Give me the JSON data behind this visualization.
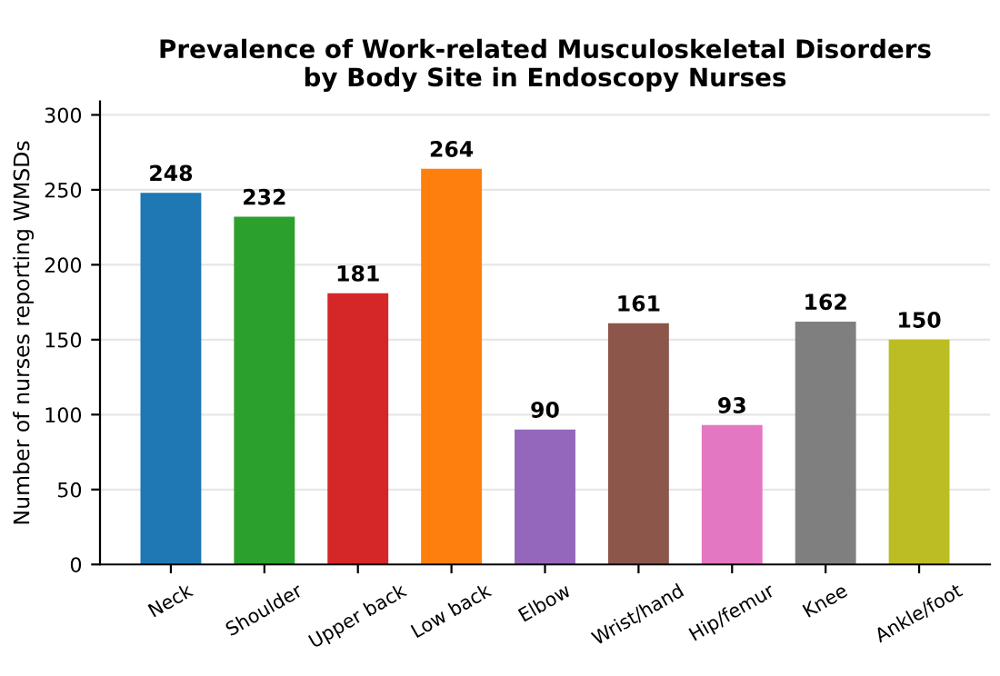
{
  "chart_data": {
    "type": "bar",
    "title": "Prevalence of Work-related Musculoskeletal Disorders\nby Body Site in Endoscopy Nurses",
    "ylabel": "Number of nurses reporting WMSDs",
    "categories": [
      "Neck",
      "Shoulder",
      "Upper back",
      "Low back",
      "Elbow",
      "Wrist/hand",
      "Hip/femur",
      "Knee",
      "Ankle/foot"
    ],
    "values": [
      248,
      232,
      181,
      264,
      90,
      161,
      93,
      162,
      150
    ],
    "colors": [
      "#1f77b4",
      "#2ca02c",
      "#d62728",
      "#ff7f0e",
      "#9467bd",
      "#8c564b",
      "#e377c2",
      "#7f7f7f",
      "#bcbd22"
    ],
    "ylim": [
      0,
      309
    ],
    "yticks": [
      0,
      50,
      100,
      150,
      200,
      250,
      300
    ],
    "grid": "y",
    "data_labels": true
  }
}
